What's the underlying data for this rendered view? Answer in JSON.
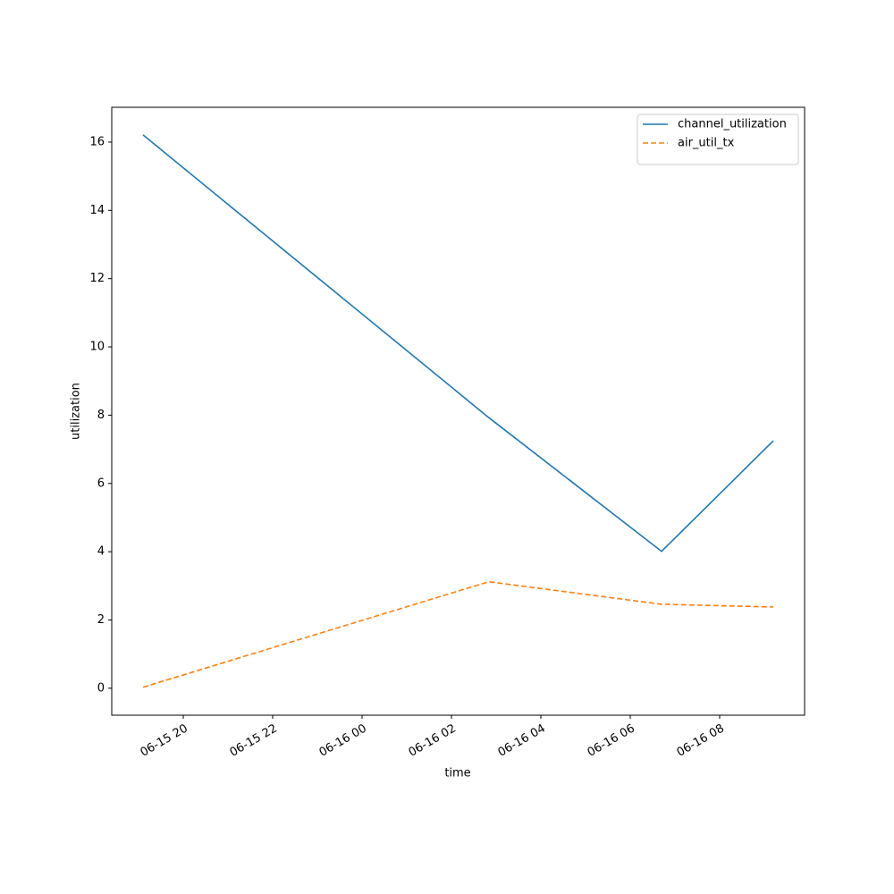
{
  "chart_data": {
    "type": "line",
    "x": [
      "06-15 19:06",
      "06-16 02:50",
      "06-16 06:42",
      "06-16 09:12"
    ],
    "series": [
      {
        "name": "channel_utilization",
        "color": "#1f77b4",
        "dash": "solid",
        "values": [
          16.21,
          7.93,
          4.01,
          7.25
        ]
      },
      {
        "name": "air_util_tx",
        "color": "#ff7f0e",
        "dash": "dashed",
        "values": [
          0.03,
          3.12,
          2.46,
          2.38
        ]
      }
    ],
    "xlabel": "time",
    "ylabel": "utilization",
    "xlim": [
      "06-15 18:24",
      "06-16 09:54"
    ],
    "xticks": [
      "06-15 20",
      "06-15 22",
      "06-16 00",
      "06-16 02",
      "06-16 04",
      "06-16 06",
      "06-16 08"
    ],
    "ylim": [
      -0.79,
      17.02
    ],
    "yticks": [
      0,
      2,
      4,
      6,
      8,
      10,
      12,
      14,
      16
    ],
    "grid": false,
    "legend": "upper right"
  }
}
